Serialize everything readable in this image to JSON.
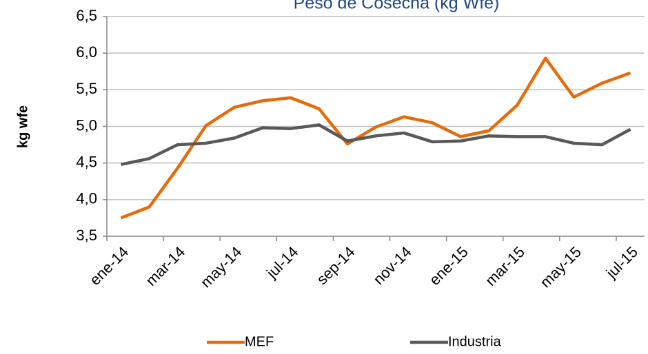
{
  "chart_data": {
    "type": "line",
    "title": "Peso de Cosecha (kg Wfe)",
    "y_label": "kg wfe",
    "categories": [
      "ene-14",
      null,
      "mar-14",
      null,
      "may-14",
      null,
      "jul-14",
      null,
      "sep-14",
      null,
      "nov-14",
      null,
      "ene-15",
      null,
      "mar-15",
      null,
      "may-15",
      null,
      "jul-15"
    ],
    "series": [
      {
        "name": "MEF",
        "color": "#e46c0a",
        "values": [
          3.75,
          3.9,
          4.43,
          5.01,
          5.26,
          5.35,
          5.39,
          5.24,
          4.76,
          4.99,
          5.13,
          5.05,
          4.86,
          4.94,
          5.29,
          5.93,
          5.4,
          5.59,
          5.73
        ]
      },
      {
        "name": "Industria",
        "color": "#595959",
        "values": [
          4.48,
          4.56,
          4.75,
          4.77,
          4.84,
          4.98,
          4.97,
          5.02,
          4.8,
          4.87,
          4.91,
          4.79,
          4.8,
          4.87,
          4.86,
          4.86,
          4.77,
          4.75,
          4.96
        ]
      }
    ],
    "ylim": [
      3.5,
      6.5
    ],
    "yticks": [
      {
        "value": 3.5,
        "label": "3,5"
      },
      {
        "value": 4,
        "label": "4,0"
      },
      {
        "value": 4.5,
        "label": "4,5"
      },
      {
        "value": 5,
        "label": "5,0"
      },
      {
        "value": 5.5,
        "label": "5,5"
      },
      {
        "value": 6,
        "label": "6,0"
      },
      {
        "value": 6.5,
        "label": "6,5"
      }
    ],
    "grid": true,
    "legend": "bottom"
  }
}
